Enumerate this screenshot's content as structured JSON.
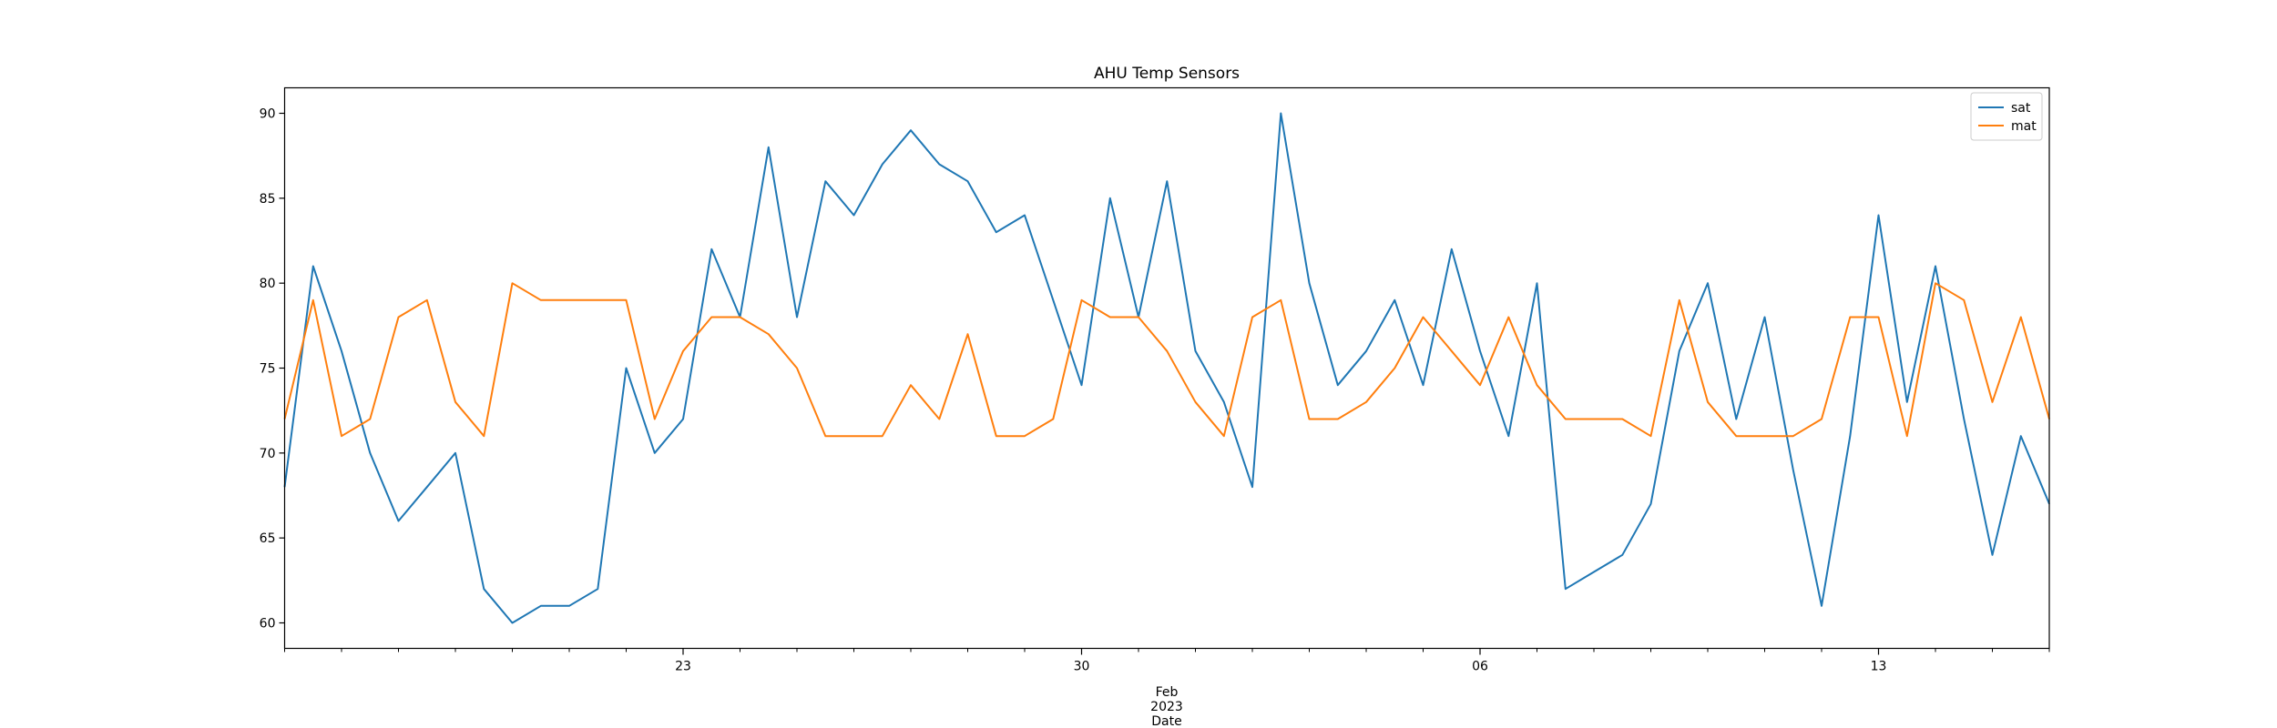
{
  "chart_data": {
    "type": "line",
    "title": "AHU Temp Sensors",
    "xlabel": "Date",
    "ylabel": "",
    "x_range": [
      "2023-01-16",
      "2023-02-16"
    ],
    "ylim": [
      58.5,
      91.5
    ],
    "y_ticks": [
      60,
      65,
      70,
      75,
      80,
      85,
      90
    ],
    "x_ticks": [
      {
        "date": "2023-01-23",
        "label": "23"
      },
      {
        "date": "2023-01-30",
        "label": "30"
      },
      {
        "date": "2023-02-06",
        "label": "06"
      },
      {
        "date": "2023-02-13",
        "label": "13"
      }
    ],
    "x_secondary_label": [
      "Feb",
      "2023"
    ],
    "grid": false,
    "legend_placement": "top-right",
    "series": [
      {
        "name": "sat",
        "color": "#1f77b4",
        "x": [
          "2023-01-16",
          "2023-01-16T12:00",
          "2023-01-17",
          "2023-01-17T12:00",
          "2023-01-18",
          "2023-01-18T12:00",
          "2023-01-19",
          "2023-01-19T12:00",
          "2023-01-20",
          "2023-01-20T12:00",
          "2023-01-21",
          "2023-01-21T12:00",
          "2023-01-22",
          "2023-01-22T12:00",
          "2023-01-23",
          "2023-01-23T12:00",
          "2023-01-24",
          "2023-01-24T12:00",
          "2023-01-25",
          "2023-01-25T12:00",
          "2023-01-26",
          "2023-01-26T12:00",
          "2023-01-27",
          "2023-01-27T12:00",
          "2023-01-28",
          "2023-01-28T12:00",
          "2023-01-29",
          "2023-01-29T12:00",
          "2023-01-30",
          "2023-01-30T12:00",
          "2023-01-31",
          "2023-01-31T12:00",
          "2023-02-01",
          "2023-02-01T12:00",
          "2023-02-02",
          "2023-02-02T12:00",
          "2023-02-03",
          "2023-02-03T12:00",
          "2023-02-04",
          "2023-02-04T12:00",
          "2023-02-05",
          "2023-02-05T12:00",
          "2023-02-06",
          "2023-02-06T12:00",
          "2023-02-07",
          "2023-02-07T12:00",
          "2023-02-08",
          "2023-02-08T12:00",
          "2023-02-09",
          "2023-02-09T12:00",
          "2023-02-10",
          "2023-02-10T12:00",
          "2023-02-11",
          "2023-02-11T12:00",
          "2023-02-12",
          "2023-02-12T12:00",
          "2023-02-13",
          "2023-02-13T12:00",
          "2023-02-14",
          "2023-02-14T12:00",
          "2023-02-15",
          "2023-02-15T12:00",
          "2023-02-16"
        ],
        "values": [
          68,
          81,
          76,
          70,
          66,
          68,
          70,
          62,
          60,
          61,
          61,
          62,
          75,
          70,
          72,
          82,
          78,
          88,
          78,
          86,
          84,
          87,
          89,
          87,
          86,
          83,
          84,
          79,
          74,
          85,
          78,
          86,
          76,
          73,
          68,
          90,
          80,
          74,
          76,
          79,
          74,
          82,
          76,
          71,
          80,
          62,
          63,
          64,
          67,
          76,
          80,
          72,
          78,
          69,
          61,
          71,
          84,
          73,
          81,
          72,
          64,
          71,
          67
        ]
      },
      {
        "name": "mat",
        "color": "#ff7f0e",
        "x": [
          "2023-01-16",
          "2023-01-16T12:00",
          "2023-01-17",
          "2023-01-17T12:00",
          "2023-01-18",
          "2023-01-18T12:00",
          "2023-01-19",
          "2023-01-19T12:00",
          "2023-01-20",
          "2023-01-20T12:00",
          "2023-01-21",
          "2023-01-21T12:00",
          "2023-01-22",
          "2023-01-22T12:00",
          "2023-01-23",
          "2023-01-23T12:00",
          "2023-01-24",
          "2023-01-24T12:00",
          "2023-01-25",
          "2023-01-25T12:00",
          "2023-01-26",
          "2023-01-26T12:00",
          "2023-01-27",
          "2023-01-27T12:00",
          "2023-01-28",
          "2023-01-28T12:00",
          "2023-01-29",
          "2023-01-29T12:00",
          "2023-01-30",
          "2023-01-30T12:00",
          "2023-01-31",
          "2023-01-31T12:00",
          "2023-02-01",
          "2023-02-01T12:00",
          "2023-02-02",
          "2023-02-02T12:00",
          "2023-02-03",
          "2023-02-03T12:00",
          "2023-02-04",
          "2023-02-04T12:00",
          "2023-02-05",
          "2023-02-05T12:00",
          "2023-02-06",
          "2023-02-06T12:00",
          "2023-02-07",
          "2023-02-07T12:00",
          "2023-02-08",
          "2023-02-08T12:00",
          "2023-02-09",
          "2023-02-09T12:00",
          "2023-02-10",
          "2023-02-10T12:00",
          "2023-02-11",
          "2023-02-11T12:00",
          "2023-02-12",
          "2023-02-12T12:00",
          "2023-02-13",
          "2023-02-13T12:00",
          "2023-02-14",
          "2023-02-14T12:00",
          "2023-02-15",
          "2023-02-15T12:00",
          "2023-02-16"
        ],
        "values": [
          72,
          79,
          71,
          72,
          78,
          79,
          73,
          71,
          80,
          79,
          79,
          79,
          79,
          72,
          76,
          78,
          78,
          77,
          75,
          71,
          71,
          71,
          74,
          72,
          77,
          71,
          71,
          72,
          79,
          78,
          78,
          76,
          73,
          71,
          78,
          79,
          72,
          72,
          73,
          75,
          78,
          76,
          74,
          78,
          74,
          72,
          72,
          72,
          71,
          79,
          73,
          71,
          71,
          71,
          72,
          78,
          78,
          71,
          80,
          79,
          73,
          78,
          72
        ]
      }
    ]
  }
}
